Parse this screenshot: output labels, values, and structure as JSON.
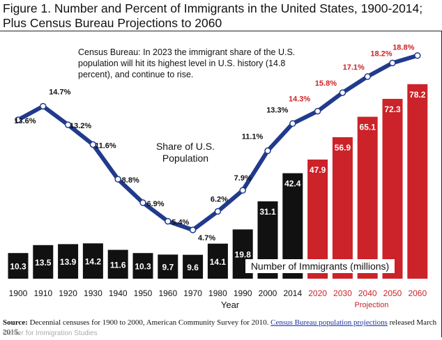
{
  "chart_data": {
    "type": "bar+line",
    "title_line1": "Figure 1. Number and Percent of Immigrants in the United States, 1900-2014;",
    "title_line2": "Plus Census Bureau Projections to 2060",
    "annotation": "Census Bureau: In 2023 the immigrant share of the U.S. population will hit its highest level in U.S. history (14.8 percent), and continue to rise.",
    "share_label": "Share of U.S. Population",
    "bars_label": "Number of Immigrants (millions)",
    "xlabel": "Year",
    "projection_label": "Projection",
    "categories": [
      "1900",
      "1910",
      "1920",
      "1930",
      "1940",
      "1950",
      "1960",
      "1970",
      "1980",
      "1990",
      "2000",
      "2014",
      "2020",
      "2030",
      "2040",
      "2050",
      "2060"
    ],
    "projected": [
      false,
      false,
      false,
      false,
      false,
      false,
      false,
      false,
      false,
      false,
      false,
      false,
      true,
      true,
      true,
      true,
      true
    ],
    "series": [
      {
        "name": "Number of Immigrants (millions)",
        "type": "bar",
        "values": [
          10.3,
          13.5,
          13.9,
          14.2,
          11.6,
          10.3,
          9.7,
          9.6,
          14.1,
          19.8,
          31.1,
          42.4,
          47.9,
          56.9,
          65.1,
          72.3,
          78.2
        ]
      },
      {
        "name": "Share of U.S. Population",
        "type": "line",
        "values": [
          13.6,
          14.7,
          13.2,
          11.6,
          8.8,
          6.9,
          5.4,
          4.7,
          6.2,
          7.9,
          11.1,
          13.3,
          14.3,
          15.8,
          17.1,
          18.2,
          18.8
        ]
      }
    ],
    "share_labels": [
      "13.6%",
      "14.7%",
      "13.2%",
      "11.6%",
      "8.8%",
      "6.9%",
      "5.4%",
      "4.7%",
      "6.2%",
      "7.9%",
      "11.1%",
      "13.3%",
      "14.3%",
      "15.8%",
      "17.1%",
      "18.2%",
      "18.8%"
    ],
    "colors": {
      "historical_bar": "#111111",
      "projected_bar": "#cc2229",
      "line": "#213a8c",
      "projected_text": "#cc2229"
    }
  },
  "source": {
    "prefix": "Source:",
    "text": " Decennial censuses for 1900 to 2000, American Community Survey for 2010. ",
    "link": "Census Bureau population projections",
    "suffix": " released March 2015."
  },
  "watermark": "Center for Immigration Studies"
}
